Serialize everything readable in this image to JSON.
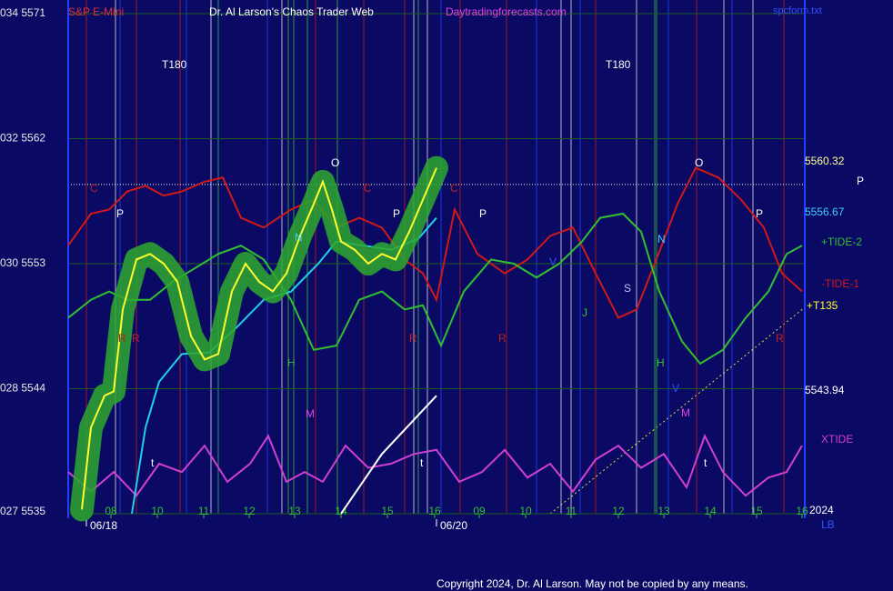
{
  "chart_data": {
    "type": "line",
    "instrument": "S&P E-Mini",
    "title": "Dr. Al Larson's Chaos Trader Web",
    "site": "Daytradingforecasts.com",
    "file": "spcform.txt",
    "xlim": [
      0,
      81
    ],
    "xticks": [
      {
        "value": 4.7,
        "label": "08"
      },
      {
        "value": 9.8,
        "label": "10"
      },
      {
        "value": 14.9,
        "label": "11"
      },
      {
        "value": 19.9,
        "label": "12"
      },
      {
        "value": 24.9,
        "label": "13"
      },
      {
        "value": 30,
        "label": "14"
      },
      {
        "value": 35.1,
        "label": "15"
      },
      {
        "value": 40.3,
        "label": "16"
      },
      {
        "value": 45.2,
        "label": "09"
      },
      {
        "value": 50.3,
        "label": "10"
      },
      {
        "value": 55.3,
        "label": "11"
      },
      {
        "value": 60.5,
        "label": "12"
      },
      {
        "value": 65.5,
        "label": "13"
      },
      {
        "value": 70.6,
        "label": "14"
      },
      {
        "value": 75.7,
        "label": "15"
      },
      {
        "value": 80.7,
        "label": "16"
      }
    ],
    "ylim": [
      5535,
      5571
    ],
    "yticks": [
      {
        "value": 5535,
        "label": "027 5535"
      },
      {
        "value": 5544,
        "label": "028 5544"
      },
      {
        "value": 5553,
        "label": "030 5553"
      },
      {
        "value": 5562,
        "label": "032 5562"
      },
      {
        "value": 5571,
        "label": "034 5571"
      }
    ],
    "grid": true,
    "reference_line": 5558.7,
    "date_labels": [
      {
        "value": 2,
        "label": "06/18"
      },
      {
        "value": 40.5,
        "label": "06/20"
      }
    ],
    "series": [
      {
        "name": "-TIDE-1",
        "color": "#d01818",
        "x": [
          0,
          2.5,
          4.5,
          6.5,
          8.5,
          10.5,
          12.5,
          15,
          17,
          19,
          21.5,
          24.5,
          27,
          29.5,
          32,
          34.5,
          37,
          39,
          40.5,
          42.5,
          45,
          48,
          50.5,
          53,
          55.5,
          58,
          60.5,
          62.5,
          64.5,
          67,
          69,
          71.5,
          74,
          76.5,
          78.5,
          80.7
        ],
        "values": [
          5554.3,
          5556.6,
          5556.9,
          5558.2,
          5558.6,
          5557.9,
          5558.2,
          5558.9,
          5559.2,
          5556.3,
          5555.6,
          5556.9,
          5557.6,
          5555.6,
          5556.3,
          5555.6,
          5553.3,
          5552.3,
          5550.4,
          5556.9,
          5553.7,
          5552.3,
          5553.3,
          5555,
          5555.6,
          5552.3,
          5549.1,
          5549.7,
          5553,
          5557.3,
          5559.9,
          5559.2,
          5557.6,
          5555.6,
          5552.3,
          5551
        ]
      },
      {
        "name": "+TIDE-2",
        "color": "#30c030",
        "x": [
          0,
          2.5,
          4.5,
          6.5,
          9,
          11.5,
          14,
          16.5,
          19,
          21.5,
          24.5,
          27,
          29.5,
          32,
          34.5,
          37,
          39,
          41,
          43.5,
          46.5,
          49,
          51.5,
          54,
          56.5,
          58.5,
          61,
          63,
          65,
          67.5,
          69.5,
          72,
          74.5,
          77,
          79,
          80.7
        ],
        "values": [
          5549.1,
          5550.4,
          5551,
          5550.4,
          5550.4,
          5551.7,
          5552.7,
          5553.7,
          5554.3,
          5553.3,
          5550.4,
          5546.8,
          5547.1,
          5550.4,
          5551,
          5549.7,
          5550,
          5547.1,
          5551,
          5553.3,
          5553,
          5552,
          5553,
          5554.6,
          5556.3,
          5556.6,
          5555.3,
          5551,
          5547.4,
          5545.8,
          5546.8,
          5549.1,
          5551,
          5553.7,
          5554.3
        ]
      },
      {
        "name": "XTIDE",
        "color": "#d040d0",
        "x": [
          0,
          2.5,
          5,
          7.5,
          10,
          12.5,
          15,
          17.5,
          20,
          22,
          24,
          26,
          28,
          30.5,
          33,
          35.5,
          38,
          40.5,
          43,
          45.5,
          48,
          50.5,
          53,
          55.5,
          58,
          60.5,
          63,
          65.5,
          68,
          70,
          72,
          74.5,
          77,
          79,
          80.7
        ],
        "values": [
          5538,
          5536.6,
          5538,
          5536.3,
          5538.6,
          5538,
          5539.9,
          5537.3,
          5538.6,
          5540.6,
          5537.3,
          5538,
          5537.3,
          5539.9,
          5538.3,
          5538.6,
          5539.3,
          5539.6,
          5537.3,
          5538,
          5539.6,
          5537.6,
          5538.6,
          5536.6,
          5538.9,
          5539.9,
          5538.3,
          5539.3,
          5536.9,
          5540.6,
          5538,
          5536.3,
          5537.6,
          5538,
          5539.9
        ]
      },
      {
        "color": "#ffffff",
        "x": [
          30,
          34.5,
          40.5
        ],
        "values": [
          5535,
          5539.3,
          5543.5
        ]
      },
      {
        "color": "#20d0e8",
        "x": [
          7,
          8.5,
          10,
          12.5,
          15.5,
          18.5,
          21.5,
          24.5,
          27.5,
          29.5,
          32.5,
          35.5,
          38.5,
          40.5
        ],
        "values": [
          5535,
          5541.2,
          5544.5,
          5546.5,
          5546.6,
          5548.4,
          5550.4,
          5551,
          5553,
          5554.6,
          5554.3,
          5554,
          5554.8,
          5556.3
        ]
      },
      {
        "color": "#ffff30",
        "x": [
          1.5,
          2.5,
          4,
          5,
          6,
          7.5,
          9,
          10.5,
          12,
          13.5,
          15,
          16.5,
          18,
          19.5,
          21,
          22.5,
          24,
          25.5,
          27,
          28,
          29,
          30,
          31.5,
          33,
          34.5,
          36,
          37.5,
          39,
          40.5
        ],
        "values": [
          5535.3,
          5541.2,
          5543.5,
          5543.8,
          5549.7,
          5553.3,
          5553.7,
          5553,
          5551.7,
          5547.8,
          5546.1,
          5546.5,
          5551,
          5553,
          5551.7,
          5551,
          5552.3,
          5555,
          5557.3,
          5558.9,
          5556.9,
          5554.6,
          5554,
          5553,
          5553.7,
          5553.3,
          5555.3,
          5557.6,
          5559.9
        ]
      }
    ],
    "right_labels": [
      5560.32,
      5556.67,
      "+T135",
      5543.94,
      "2024",
      "LB",
      "P"
    ],
    "annotations": [
      "T180",
      "T180",
      "C",
      "P",
      "R",
      "R",
      "O",
      "C",
      "P",
      "N",
      "H",
      "M",
      "t",
      "R",
      "t",
      "C",
      "P",
      "R",
      "V",
      "J",
      "S",
      "N",
      "H",
      "V",
      "M",
      "O",
      "P",
      "R",
      "t"
    ]
  },
  "copyright": "Copyright 2024, Dr. Al Larson. May not be copied by any means."
}
